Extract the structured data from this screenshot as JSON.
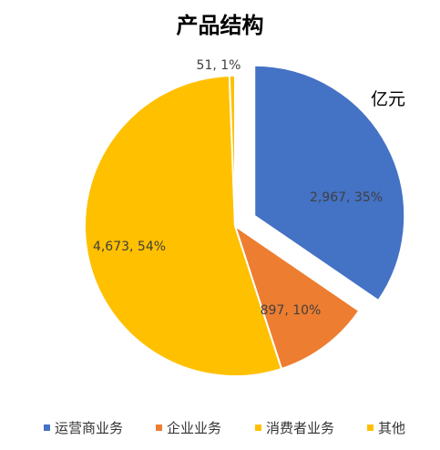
{
  "chart_data": {
    "type": "pie",
    "title": "产品结构",
    "unit": "亿元",
    "slices": [
      {
        "label": "运营商业务",
        "value": 2967,
        "percent": "35%",
        "data_label": "2,967, 35%",
        "color": "#4472C4",
        "exploded": true
      },
      {
        "label": "企业业务",
        "value": 897,
        "percent": "10%",
        "data_label": "897, 10%",
        "color": "#ED7D31",
        "exploded": false
      },
      {
        "label": "消费者业务",
        "value": 4673,
        "percent": "54%",
        "data_label": "4,673, 54%",
        "color": "#FFC000",
        "exploded": false
      },
      {
        "label": "其他",
        "value": 51,
        "percent": "1%",
        "data_label": "51, 1%",
        "color": "#FFC000",
        "exploded": false
      }
    ],
    "legend_position": "bottom"
  }
}
